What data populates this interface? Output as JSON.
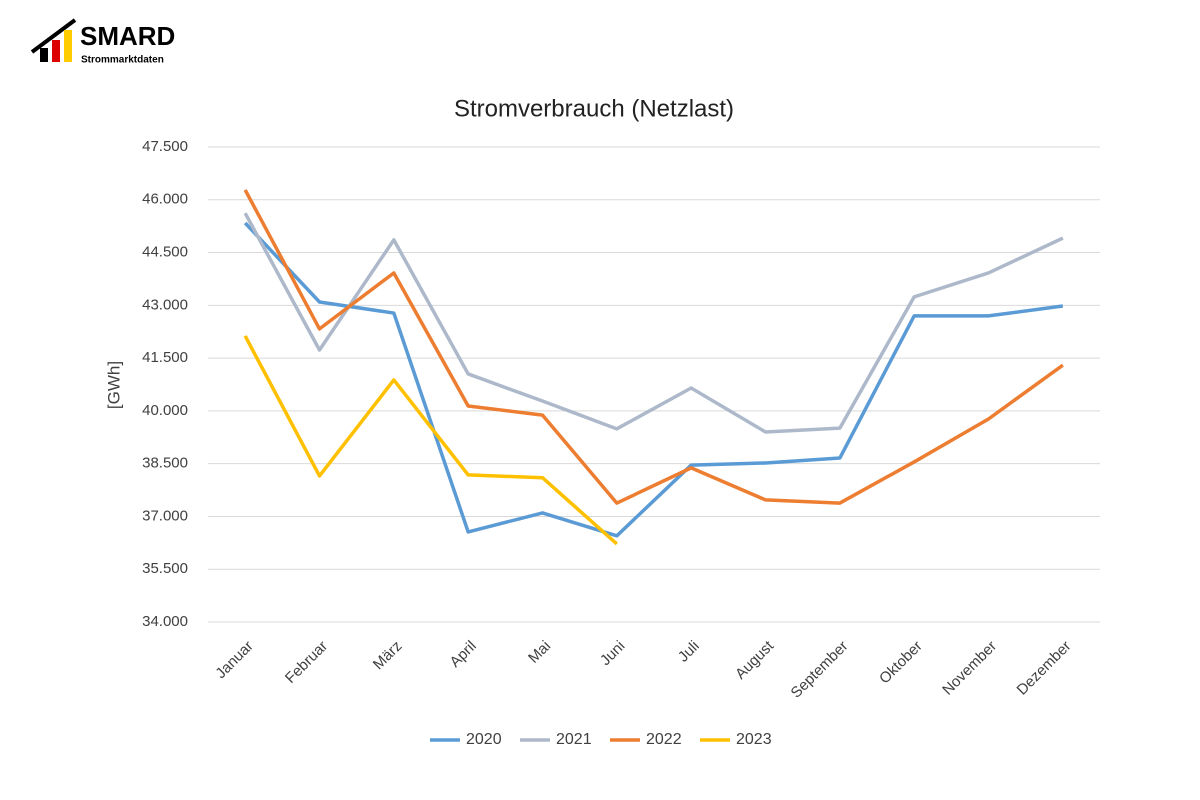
{
  "header": {
    "logo": "SMARD",
    "logo_sub": "Strommarktdaten"
  },
  "chart_data": {
    "type": "line",
    "title": "Stromverbrauch (Netzlast)",
    "y_label": "[GWh]",
    "categories": [
      "Januar",
      "Februar",
      "März",
      "April",
      "Mai",
      "Juni",
      "Juli",
      "August",
      "September",
      "Oktober",
      "November",
      "Dezember"
    ],
    "series": [
      {
        "name": "2020",
        "color": "#5b9bd5",
        "values": [
          45340,
          43095,
          42780,
          36560,
          37100,
          36450,
          38460,
          38520,
          38660,
          42700,
          42700,
          42980
        ]
      },
      {
        "name": "2021",
        "color": "#adb9ca",
        "values": [
          45620,
          41730,
          44860,
          41050,
          40280,
          39490,
          40650,
          39400,
          39510,
          43240,
          43920,
          44910
        ]
      },
      {
        "name": "2022",
        "color": "#ed7d31",
        "values": [
          46280,
          42330,
          43920,
          40140,
          39880,
          37380,
          38380,
          37470,
          37380,
          38550,
          39770,
          41300
        ]
      },
      {
        "name": "2023",
        "color": "#ffc000",
        "values": [
          42130,
          38150,
          40880,
          38180,
          38100,
          36220,
          null,
          null,
          null,
          null,
          null,
          null
        ]
      }
    ],
    "ylim": [
      34000,
      47500
    ],
    "yticks": [
      {
        "value": 34000,
        "label": "34.000"
      },
      {
        "value": 35500,
        "label": "35.500"
      },
      {
        "value": 37000,
        "label": "37.000"
      },
      {
        "value": 38500,
        "label": "38.500"
      },
      {
        "value": 40000,
        "label": "40.000"
      },
      {
        "value": 41500,
        "label": "41.500"
      },
      {
        "value": 43000,
        "label": "43.000"
      },
      {
        "value": 44500,
        "label": "44.500"
      },
      {
        "value": 46000,
        "label": "46.000"
      },
      {
        "value": 47500,
        "label": "47.500"
      }
    ],
    "grid": true,
    "legend": "bottom"
  }
}
